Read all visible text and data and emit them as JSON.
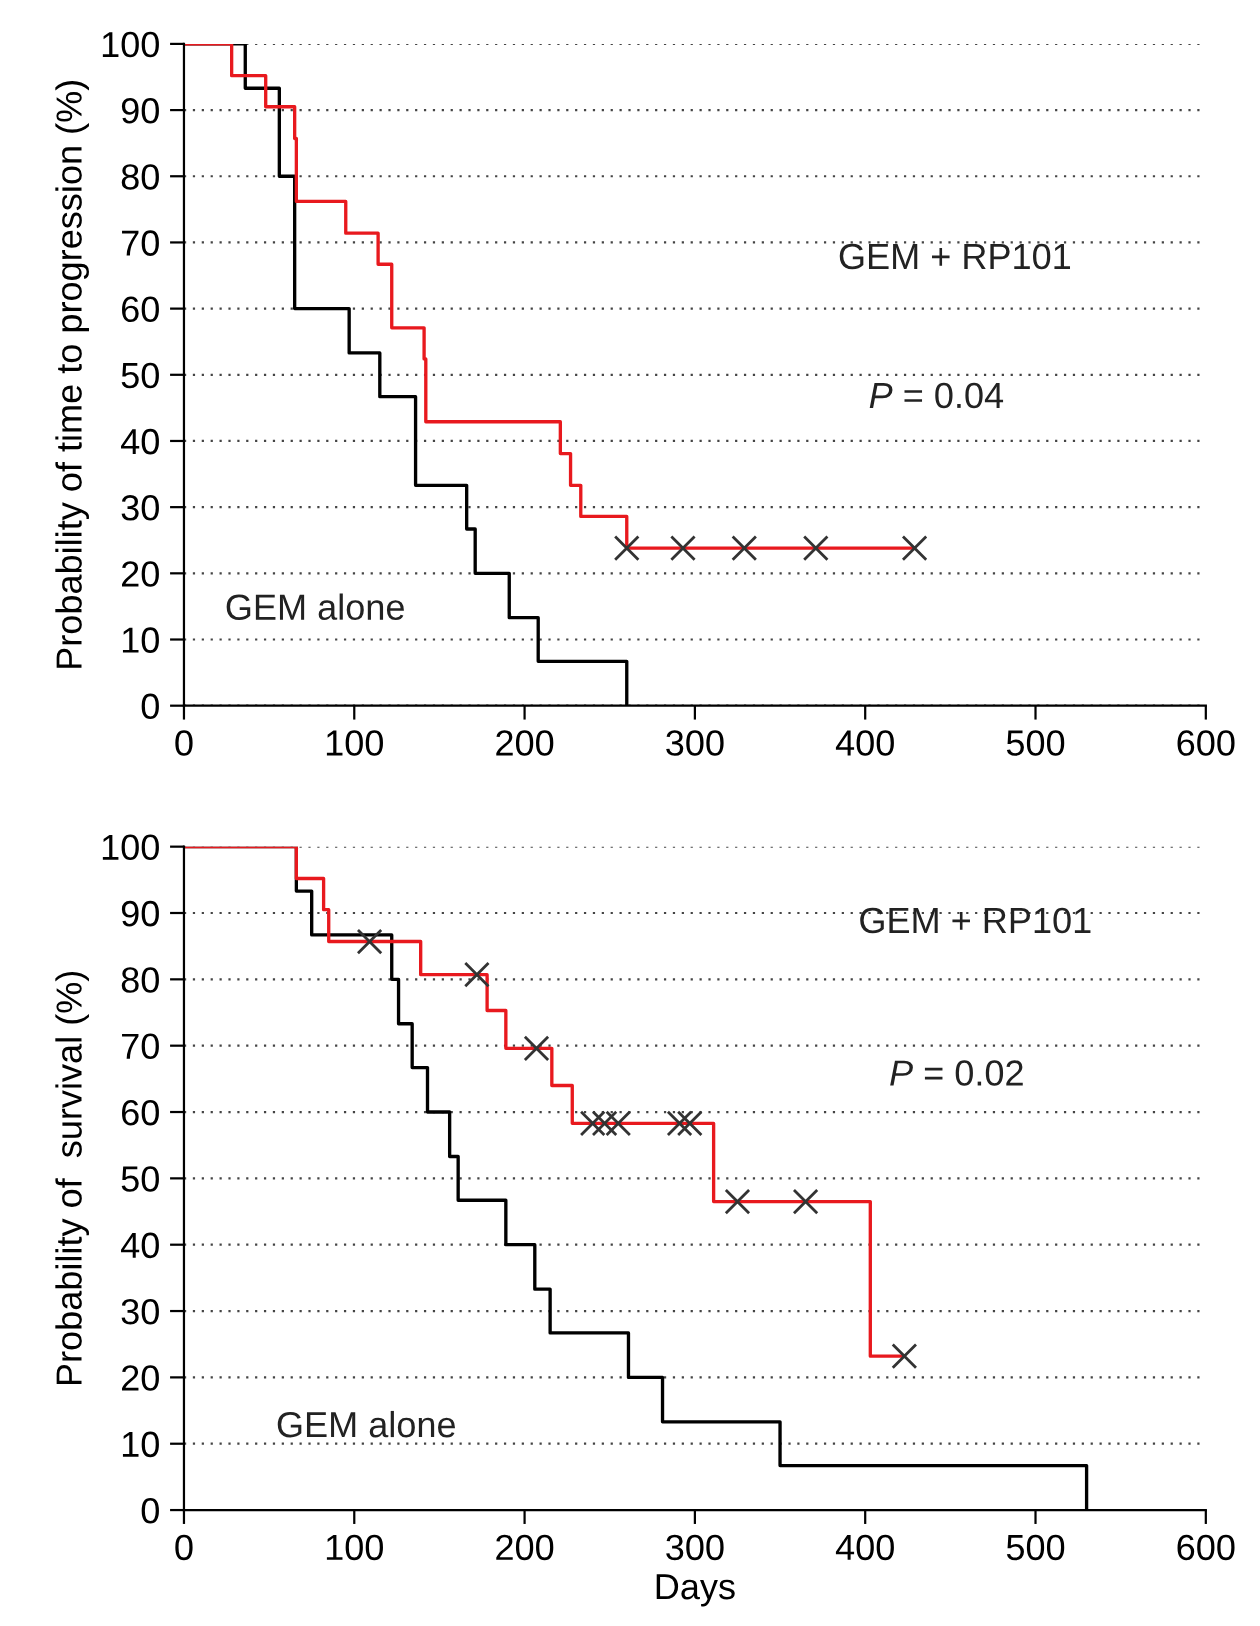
{
  "chart_data": [
    {
      "type": "step",
      "ylabel": "Probability of time to progression (%)",
      "xlim": [
        0,
        600
      ],
      "ylim": [
        0,
        100
      ],
      "xticks": [
        0,
        100,
        200,
        300,
        400,
        500,
        600
      ],
      "yticks": [
        0,
        10,
        20,
        30,
        40,
        50,
        60,
        70,
        80,
        90,
        100
      ],
      "grid": "y",
      "annotations": [
        "GEM alone",
        "GEM + RP101",
        "P = 0.04"
      ],
      "series": [
        {
          "color": "#000000",
          "x": [
            0,
            36,
            56,
            65,
            97,
            115,
            136,
            166,
            171,
            191,
            208,
            260
          ],
          "values": [
            100,
            93.3,
            80,
            60,
            53.3,
            46.7,
            33.3,
            26.7,
            20,
            13.3,
            6.7,
            0
          ]
        },
        {
          "color": "#e8191e",
          "x": [
            0,
            28,
            48,
            65,
            66,
            95,
            114,
            122,
            141,
            142,
            221,
            227,
            233,
            260,
            429
          ],
          "values": [
            100,
            95.2,
            90.5,
            85.7,
            76.2,
            71.4,
            66.7,
            57.1,
            52.4,
            42.9,
            38.1,
            33.3,
            28.6,
            23.8,
            23.8
          ]
        },
        {
          "color": "#333333",
          "type": "scatter",
          "marker": "cross",
          "x": [
            260,
            293,
            329,
            371,
            429
          ],
          "values": [
            23.8,
            23.8,
            23.8,
            23.8,
            23.8
          ]
        }
      ]
    },
    {
      "type": "step",
      "xlabel": "Days",
      "ylabel": "Probability of  survival (%)",
      "xlim": [
        0,
        600
      ],
      "ylim": [
        0,
        100
      ],
      "xticks": [
        0,
        100,
        200,
        300,
        400,
        500,
        600
      ],
      "yticks": [
        0,
        10,
        20,
        30,
        40,
        50,
        60,
        70,
        80,
        90,
        100
      ],
      "grid": "y",
      "annotations": [
        "GEM alone",
        "GEM + RP101",
        "P = 0.02"
      ],
      "series": [
        {
          "color": "#000000",
          "x": [
            0,
            66,
            75,
            122,
            126,
            134,
            143,
            156,
            161,
            189,
            206,
            215,
            261,
            281,
            350,
            530
          ],
          "values": [
            100,
            93.3,
            86.7,
            80,
            73.3,
            66.7,
            60,
            53.3,
            46.7,
            40,
            33.3,
            26.7,
            20,
            13.3,
            6.7,
            0
          ]
        },
        {
          "color": "#e8191e",
          "x": [
            0,
            66,
            82,
            85,
            139,
            178,
            189,
            216,
            228,
            311,
            403,
            423
          ],
          "values": [
            100,
            95.2,
            90.5,
            85.7,
            80.7,
            75.3,
            69.6,
            64,
            58.3,
            46.5,
            23.2,
            23.2
          ]
        },
        {
          "color": "#333333",
          "type": "scatter",
          "marker": "cross",
          "x": [
            109,
            172,
            207,
            240,
            247,
            255,
            291,
            297,
            325,
            365,
            423
          ],
          "values": [
            85.7,
            80.7,
            69.6,
            58.3,
            58.3,
            58.3,
            58.3,
            58.3,
            46.5,
            46.5,
            23.2
          ]
        }
      ]
    }
  ]
}
